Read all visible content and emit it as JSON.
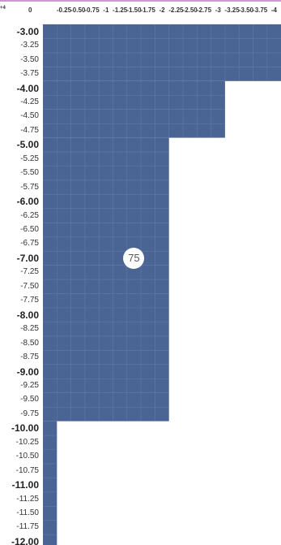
{
  "corner_label": "+4",
  "columns": [
    "0",
    "-0.25",
    "-0.50",
    "-0.75",
    "-1",
    "-1.25",
    "-1.50",
    "-1.75",
    "-2",
    "-2.25",
    "-2.50",
    "-2.75",
    "-3",
    "-3.25",
    "-3.50",
    "-3.75",
    "-4"
  ],
  "rows": [
    "-3.00",
    "-3.25",
    "-3.50",
    "-3.75",
    "-4.00",
    "-4.25",
    "-4.50",
    "-4.75",
    "-5.00",
    "-5.25",
    "-5.50",
    "-5.75",
    "-6.00",
    "-6.25",
    "-6.50",
    "-6.75",
    "-7.00",
    "-7.25",
    "-7.50",
    "-7.75",
    "-8.00",
    "-8.25",
    "-8.50",
    "-8.75",
    "-9.00",
    "-9.25",
    "-9.50",
    "-9.75",
    "-10.00",
    "-10.25",
    "-10.50",
    "-10.75",
    "-11.00",
    "-11.25",
    "-11.50",
    "-11.75",
    "-12.00"
  ],
  "major_rows": [
    "-3.00",
    "-4.00",
    "-5.00",
    "-6.00",
    "-7.00",
    "-8.00",
    "-9.00",
    "-10.00",
    "-11.00",
    "-12.00"
  ],
  "coverage": [
    {
      "min_row": "-3.00",
      "max_row": "-3.75",
      "columns": 17
    },
    {
      "min_row": "-4.00",
      "max_row": "-4.75",
      "columns": 13
    },
    {
      "min_row": "-5.00",
      "max_row": "-9.75",
      "columns": 9
    },
    {
      "min_row": "-10.00",
      "max_row": "-12.00",
      "columns": 1
    }
  ],
  "badge": {
    "value": "75",
    "row": "-7.00",
    "column": "-1.50"
  },
  "colors": {
    "fill": "#4a6494",
    "grid": "#7389b2",
    "top_accent": "#cc99cc",
    "badge_bg": "#ffffff"
  }
}
